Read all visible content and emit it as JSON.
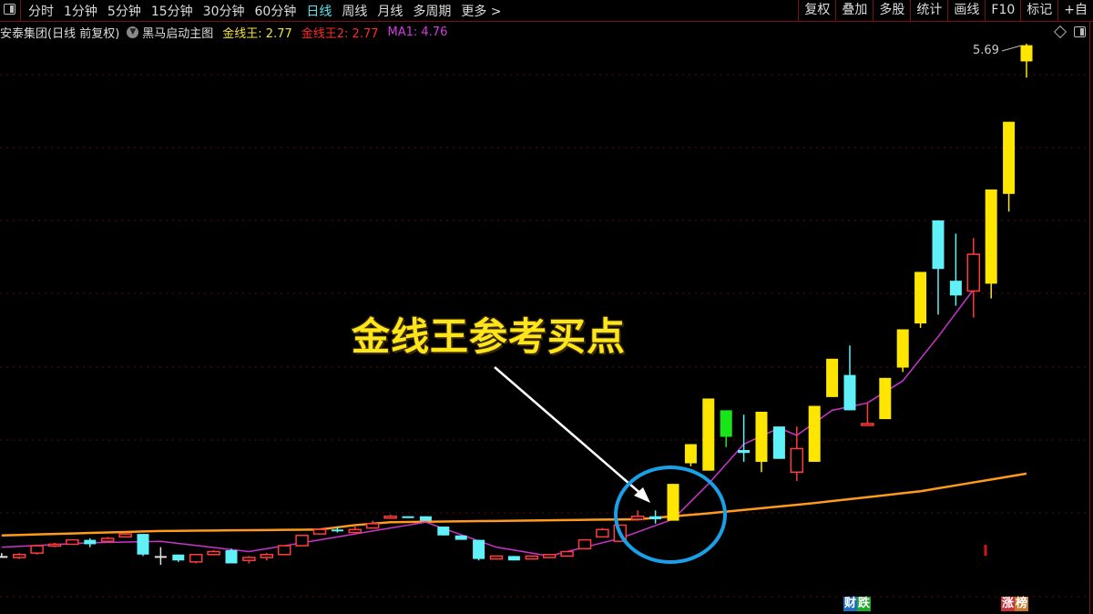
{
  "toolbar": {
    "periods": [
      "分时",
      "1分钟",
      "5分钟",
      "15分钟",
      "30分钟",
      "60分钟",
      "日线",
      "周线",
      "月线",
      "多周期",
      "更多 >"
    ],
    "active_period": "日线",
    "tools": [
      "复权",
      "叠加",
      "多股",
      "统计",
      "画线",
      "F10",
      "标记",
      "+自"
    ]
  },
  "info": {
    "stock": "安泰集团(日线 前复权)",
    "indicator": "黑马启动主图",
    "gold_label": "金线王: 2.77",
    "gold2_label": "金线王2: 2.77",
    "ma1_label": "MA1: 4.76"
  },
  "annotation": {
    "callout": "金线王参考买点",
    "max_price_label": "5.69"
  },
  "badges": {
    "left": [
      "财",
      "跌"
    ],
    "right": [
      "涨",
      "榜"
    ]
  },
  "colors": {
    "bull_yellow": "#ffe600",
    "bull_red": "#ff3b3b",
    "bear_cyan": "#5ff0f8",
    "bear_green": "#19e619",
    "doji_white": "#e0e0e0",
    "gold_line": "#ff9a1a",
    "ma1": "#cc33cc",
    "circle": "#1aa0e8",
    "grid": "#5a0d10"
  },
  "chart_data": {
    "type": "candlestick",
    "price_max_visible": 5.69,
    "candles": [
      {
        "o": 2.21,
        "c": 2.21,
        "h": 2.23,
        "l": 2.2,
        "s": "white"
      },
      {
        "o": 2.2,
        "c": 2.22,
        "h": 2.23,
        "l": 2.19,
        "s": "red"
      },
      {
        "o": 2.23,
        "c": 2.28,
        "h": 2.28,
        "l": 2.22,
        "s": "red"
      },
      {
        "o": 2.28,
        "c": 2.29,
        "h": 2.3,
        "l": 2.27,
        "s": "red"
      },
      {
        "o": 2.29,
        "c": 2.32,
        "h": 2.32,
        "l": 2.29,
        "s": "red"
      },
      {
        "o": 2.32,
        "c": 2.29,
        "h": 2.33,
        "l": 2.27,
        "s": "cyan"
      },
      {
        "o": 2.31,
        "c": 2.33,
        "h": 2.34,
        "l": 2.31,
        "s": "red"
      },
      {
        "o": 2.34,
        "c": 2.36,
        "h": 2.37,
        "l": 2.34,
        "s": "red"
      },
      {
        "o": 2.36,
        "c": 2.22,
        "h": 2.36,
        "l": 2.21,
        "s": "cyan"
      },
      {
        "o": 2.21,
        "c": 2.21,
        "h": 2.27,
        "l": 2.15,
        "s": "white"
      },
      {
        "o": 2.22,
        "c": 2.18,
        "h": 2.22,
        "l": 2.17,
        "s": "cyan"
      },
      {
        "o": 2.17,
        "c": 2.22,
        "h": 2.22,
        "l": 2.16,
        "s": "red"
      },
      {
        "o": 2.22,
        "c": 2.24,
        "h": 2.25,
        "l": 2.22,
        "s": "red"
      },
      {
        "o": 2.25,
        "c": 2.16,
        "h": 2.26,
        "l": 2.16,
        "s": "cyan"
      },
      {
        "o": 2.18,
        "c": 2.2,
        "h": 2.21,
        "l": 2.16,
        "s": "red"
      },
      {
        "o": 2.2,
        "c": 2.22,
        "h": 2.23,
        "l": 2.18,
        "s": "red"
      },
      {
        "o": 2.22,
        "c": 2.28,
        "h": 2.28,
        "l": 2.22,
        "s": "red"
      },
      {
        "o": 2.28,
        "c": 2.35,
        "h": 2.35,
        "l": 2.28,
        "s": "red"
      },
      {
        "o": 2.36,
        "c": 2.39,
        "h": 2.4,
        "l": 2.36,
        "s": "red"
      },
      {
        "o": 2.39,
        "c": 2.38,
        "h": 2.41,
        "l": 2.37,
        "s": "cyan"
      },
      {
        "o": 2.37,
        "c": 2.39,
        "h": 2.41,
        "l": 2.37,
        "s": "red"
      },
      {
        "o": 2.4,
        "c": 2.43,
        "h": 2.45,
        "l": 2.4,
        "s": "red"
      },
      {
        "o": 2.47,
        "c": 2.48,
        "h": 2.49,
        "l": 2.47,
        "s": "red"
      },
      {
        "o": 2.48,
        "c": 2.47,
        "h": 2.48,
        "l": 2.47,
        "s": "cyan"
      },
      {
        "o": 2.48,
        "c": 2.45,
        "h": 2.48,
        "l": 2.45,
        "s": "cyan"
      },
      {
        "o": 2.41,
        "c": 2.35,
        "h": 2.41,
        "l": 2.35,
        "s": "cyan"
      },
      {
        "o": 2.35,
        "c": 2.32,
        "h": 2.35,
        "l": 2.32,
        "s": "cyan"
      },
      {
        "o": 2.32,
        "c": 2.19,
        "h": 2.32,
        "l": 2.18,
        "s": "cyan"
      },
      {
        "o": 2.19,
        "c": 2.21,
        "h": 2.21,
        "l": 2.19,
        "s": "red"
      },
      {
        "o": 2.21,
        "c": 2.18,
        "h": 2.21,
        "l": 2.18,
        "s": "cyan"
      },
      {
        "o": 2.19,
        "c": 2.21,
        "h": 2.21,
        "l": 2.19,
        "s": "red"
      },
      {
        "o": 2.2,
        "c": 2.22,
        "h": 2.22,
        "l": 2.2,
        "s": "red"
      },
      {
        "o": 2.21,
        "c": 2.24,
        "h": 2.24,
        "l": 2.21,
        "s": "red"
      },
      {
        "o": 2.26,
        "c": 2.32,
        "h": 2.32,
        "l": 2.26,
        "s": "red"
      },
      {
        "o": 2.34,
        "c": 2.39,
        "h": 2.4,
        "l": 2.34,
        "s": "red"
      },
      {
        "o": 2.31,
        "c": 2.42,
        "h": 2.42,
        "l": 2.31,
        "s": "red"
      },
      {
        "o": 2.46,
        "c": 2.48,
        "h": 2.52,
        "l": 2.45,
        "s": "red"
      },
      {
        "o": 2.48,
        "c": 2.46,
        "h": 2.52,
        "l": 2.43,
        "s": "cyan"
      },
      {
        "o": 2.45,
        "c": 2.7,
        "h": 2.7,
        "l": 2.45,
        "s": "yellow"
      },
      {
        "o": 2.84,
        "c": 2.97,
        "h": 2.97,
        "l": 2.82,
        "s": "yellow"
      },
      {
        "o": 2.79,
        "c": 3.28,
        "h": 3.28,
        "l": 2.79,
        "s": "yellow"
      },
      {
        "o": 3.2,
        "c": 3.02,
        "h": 3.2,
        "l": 2.95,
        "s": "green"
      },
      {
        "o": 2.93,
        "c": 2.91,
        "h": 3.17,
        "l": 2.85,
        "s": "cyan"
      },
      {
        "o": 2.85,
        "c": 3.19,
        "h": 3.19,
        "l": 2.78,
        "s": "yellow"
      },
      {
        "o": 3.09,
        "c": 2.87,
        "h": 3.09,
        "l": 2.87,
        "s": "cyan"
      },
      {
        "o": 2.78,
        "c": 2.94,
        "h": 3.09,
        "l": 2.72,
        "s": "red"
      },
      {
        "o": 2.85,
        "c": 3.23,
        "h": 3.23,
        "l": 2.85,
        "s": "yellow"
      },
      {
        "o": 3.29,
        "c": 3.55,
        "h": 3.55,
        "l": 3.29,
        "s": "yellow"
      },
      {
        "o": 3.44,
        "c": 3.2,
        "h": 3.64,
        "l": 3.2,
        "s": "cyan"
      },
      {
        "o": 3.1,
        "c": 3.11,
        "h": 3.25,
        "l": 3.1,
        "s": "red"
      },
      {
        "o": 3.14,
        "c": 3.42,
        "h": 3.42,
        "l": 3.14,
        "s": "yellow"
      },
      {
        "o": 3.49,
        "c": 3.75,
        "h": 3.75,
        "l": 3.46,
        "s": "yellow"
      },
      {
        "o": 3.79,
        "c": 4.14,
        "h": 4.14,
        "l": 3.76,
        "s": "yellow"
      },
      {
        "o": 4.49,
        "c": 4.16,
        "h": 4.49,
        "l": 3.85,
        "s": "cyan"
      },
      {
        "o": 4.08,
        "c": 3.98,
        "h": 4.4,
        "l": 3.91,
        "s": "cyan"
      },
      {
        "o": 4.01,
        "c": 4.26,
        "h": 4.37,
        "l": 3.83,
        "s": "red"
      },
      {
        "o": 4.06,
        "c": 4.7,
        "h": 4.7,
        "l": 3.96,
        "s": "yellow"
      },
      {
        "o": 4.67,
        "c": 5.16,
        "h": 5.16,
        "l": 4.55,
        "s": "yellow"
      },
      {
        "o": 5.57,
        "c": 5.68,
        "h": 5.69,
        "l": 5.46,
        "s": "yellow"
      }
    ],
    "gold_line": [
      [
        0,
        2.35
      ],
      [
        3,
        2.36
      ],
      [
        9,
        2.38
      ],
      [
        18,
        2.39
      ],
      [
        20,
        2.42
      ],
      [
        22,
        2.44
      ],
      [
        36,
        2.46
      ],
      [
        40,
        2.5
      ],
      [
        46,
        2.57
      ],
      [
        52,
        2.65
      ],
      [
        58,
        2.77
      ]
    ],
    "ma1_line": [
      [
        0,
        2.27
      ],
      [
        5,
        2.3
      ],
      [
        9,
        2.31
      ],
      [
        14,
        2.24
      ],
      [
        18,
        2.32
      ],
      [
        22,
        2.4
      ],
      [
        24,
        2.44
      ],
      [
        28,
        2.27
      ],
      [
        31,
        2.21
      ],
      [
        35,
        2.33
      ],
      [
        38,
        2.46
      ],
      [
        40,
        2.7
      ],
      [
        42,
        2.97
      ],
      [
        44,
        3.08
      ],
      [
        45,
        3.03
      ],
      [
        47,
        3.2
      ],
      [
        49,
        3.25
      ],
      [
        51,
        3.4
      ],
      [
        53,
        3.7
      ],
      [
        55,
        4.02
      ]
    ],
    "grid": true
  }
}
